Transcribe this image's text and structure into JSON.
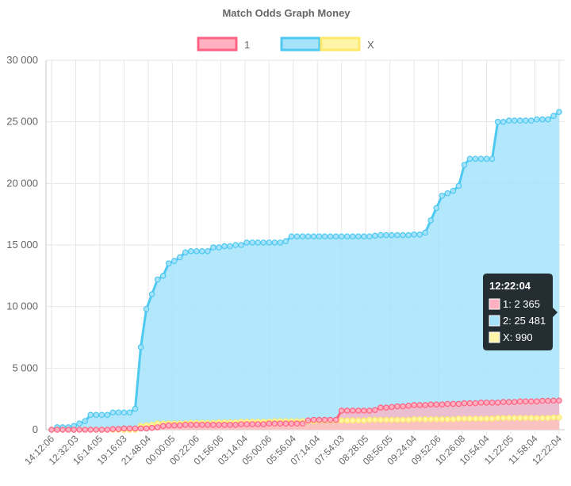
{
  "chart_data": {
    "type": "line",
    "title": "Match Odds Graph Money",
    "legend_position": "top",
    "grid": true,
    "stacked": false,
    "ylim": [
      0,
      30000
    ],
    "yticks": [
      0,
      5000,
      10000,
      15000,
      20000,
      25000,
      30000
    ],
    "ytick_labels": [
      "0",
      "5 000",
      "10 000",
      "15 000",
      "20 000",
      "25 000",
      "30 000"
    ],
    "x_tick_labels": [
      "14:12:06",
      "12:32:03",
      "16:14:05",
      "19:16:03",
      "21:48:04",
      "00:00:05",
      "00:22:06",
      "01:56:06",
      "03:14:04",
      "05:00:06",
      "05:56:04",
      "07:14:04",
      "07:54:03",
      "08:28:05",
      "08:56:05",
      "09:24:04",
      "09:52:06",
      "10:26:08",
      "10:54:04",
      "11:22:05",
      "11:58:04",
      "12:22:04"
    ],
    "series": [
      {
        "name": "1",
        "border_color": "#ff6384",
        "fill_color": "#ffb1c1",
        "values": [
          0,
          0,
          0,
          0,
          0,
          0,
          0,
          0,
          0,
          0,
          0,
          50,
          50,
          100,
          100,
          100,
          100,
          100,
          150,
          200,
          300,
          350,
          350,
          350,
          400,
          400,
          400,
          400,
          400,
          400,
          400,
          400,
          400,
          400,
          450,
          450,
          450,
          450,
          450,
          500,
          500,
          500,
          500,
          500,
          500,
          500,
          750,
          800,
          800,
          800,
          800,
          800,
          1550,
          1550,
          1550,
          1550,
          1550,
          1550,
          1600,
          1800,
          1800,
          1850,
          1900,
          1900,
          1950,
          2000,
          2000,
          2000,
          2050,
          2050,
          2050,
          2100,
          2100,
          2100,
          2150,
          2150,
          2150,
          2200,
          2200,
          2200,
          2200,
          2250,
          2250,
          2250,
          2300,
          2300,
          2300,
          2300,
          2350,
          2350,
          2365,
          2365
        ]
      },
      {
        "name": "2",
        "border_color": "#4ec9f0",
        "fill_color": "#a6e3fa",
        "values": [
          0,
          200,
          200,
          200,
          300,
          500,
          700,
          1200,
          1200,
          1200,
          1200,
          1400,
          1400,
          1400,
          1400,
          1700,
          6700,
          9800,
          11000,
          12200,
          12500,
          13500,
          13700,
          14000,
          14400,
          14500,
          14500,
          14500,
          14500,
          14800,
          14800,
          14900,
          14900,
          15000,
          15000,
          15200,
          15200,
          15200,
          15200,
          15200,
          15200,
          15200,
          15300,
          15700,
          15700,
          15700,
          15700,
          15700,
          15700,
          15700,
          15700,
          15700,
          15700,
          15700,
          15700,
          15700,
          15700,
          15700,
          15750,
          15800,
          15800,
          15800,
          15800,
          15800,
          15800,
          15850,
          15850,
          16000,
          17000,
          18000,
          19000,
          19200,
          19400,
          19800,
          21500,
          22000,
          22000,
          22000,
          22000,
          22000,
          25000,
          25000,
          25100,
          25100,
          25100,
          25100,
          25100,
          25200,
          25200,
          25200,
          25481,
          25800
        ]
      },
      {
        "name": "X",
        "border_color": "#ffe96b",
        "fill_color": "#fff5a8",
        "values": [
          0,
          0,
          0,
          0,
          0,
          0,
          0,
          0,
          0,
          0,
          0,
          0,
          0,
          0,
          0,
          0,
          300,
          350,
          400,
          500,
          500,
          500,
          500,
          500,
          500,
          550,
          550,
          550,
          550,
          550,
          600,
          600,
          600,
          600,
          650,
          650,
          650,
          650,
          650,
          650,
          700,
          700,
          700,
          700,
          700,
          700,
          700,
          700,
          750,
          750,
          750,
          750,
          750,
          750,
          750,
          750,
          750,
          800,
          800,
          800,
          800,
          800,
          800,
          800,
          800,
          850,
          850,
          850,
          850,
          850,
          850,
          850,
          850,
          900,
          900,
          900,
          900,
          900,
          900,
          900,
          950,
          950,
          950,
          950,
          950,
          950,
          950,
          950,
          950,
          950,
          990,
          990
        ]
      }
    ],
    "tooltip": {
      "title": "12:22:04",
      "lines": [
        "1: 2 365",
        "2: 25 481",
        "X: 990"
      ]
    }
  }
}
